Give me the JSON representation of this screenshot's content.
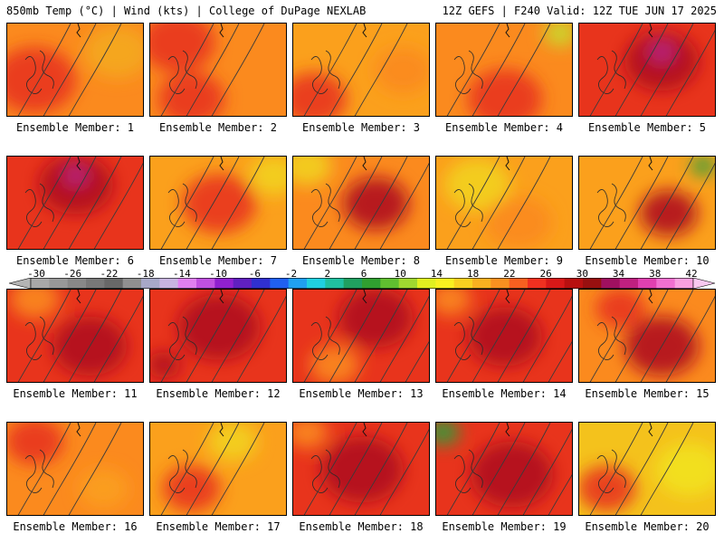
{
  "header": {
    "left": "850mb Temp (°C) | Wind (kts) | College of DuPage NEXLAB",
    "right": "12Z GEFS | F240 Valid: 12Z TUE JUN 17 2025"
  },
  "label_prefix": "Ensemble Member: ",
  "members": [
    {
      "label": "Ensemble Member: 1",
      "base": "#fb8a1e",
      "hot": [
        [
          0.2,
          0.6,
          0.5,
          "#e8341c"
        ],
        [
          0.8,
          0.3,
          0.4,
          "#f4a81c"
        ]
      ],
      "contours": 3
    },
    {
      "label": "Ensemble Member: 2",
      "base": "#fb8a1e",
      "hot": [
        [
          0.2,
          0.2,
          0.45,
          "#e8341c"
        ],
        [
          0.3,
          0.8,
          0.4,
          "#e8341c"
        ]
      ],
      "contours": 3
    },
    {
      "label": "Ensemble Member: 3",
      "base": "#fba01c",
      "hot": [
        [
          0.15,
          0.8,
          0.4,
          "#e8341c"
        ],
        [
          0.8,
          0.5,
          0.35,
          "#fb8a1e"
        ]
      ],
      "contours": 3
    },
    {
      "label": "Ensemble Member: 4",
      "base": "#fb8a1e",
      "hot": [
        [
          0.5,
          0.8,
          0.45,
          "#e8341c"
        ],
        [
          0.9,
          0.1,
          0.2,
          "#c8dc2e"
        ]
      ],
      "contours": 3
    },
    {
      "label": "Ensemble Member: 5",
      "base": "#e8341c",
      "hot": [
        [
          0.6,
          0.4,
          0.45,
          "#b0121c"
        ],
        [
          0.6,
          0.3,
          0.15,
          "#b8288c"
        ]
      ],
      "contours": 4
    },
    {
      "label": "Ensemble Member: 6",
      "base": "#e8341c",
      "hot": [
        [
          0.5,
          0.3,
          0.45,
          "#b0121c"
        ],
        [
          0.5,
          0.2,
          0.14,
          "#b8288c"
        ]
      ],
      "contours": 4
    },
    {
      "label": "Ensemble Member: 7",
      "base": "#fba01c",
      "hot": [
        [
          0.5,
          0.5,
          0.45,
          "#e8341c"
        ],
        [
          0.9,
          0.2,
          0.3,
          "#f2d21c"
        ]
      ],
      "contours": 3
    },
    {
      "label": "Ensemble Member: 8",
      "base": "#fb8a1e",
      "hot": [
        [
          0.6,
          0.5,
          0.4,
          "#b0121c"
        ],
        [
          0.1,
          0.1,
          0.3,
          "#f2d21c"
        ]
      ],
      "contours": 4
    },
    {
      "label": "Ensemble Member: 9",
      "base": "#fba01c",
      "hot": [
        [
          0.3,
          0.3,
          0.4,
          "#f2d21c"
        ],
        [
          0.6,
          0.7,
          0.4,
          "#fb8a1e"
        ]
      ],
      "contours": 3
    },
    {
      "label": "Ensemble Member: 10",
      "base": "#fba01c",
      "hot": [
        [
          0.65,
          0.6,
          0.35,
          "#b0121c"
        ],
        [
          0.9,
          0.1,
          0.15,
          "#2e9e3a"
        ]
      ],
      "contours": 4
    },
    {
      "label": "Ensemble Member: 11",
      "base": "#e8341c",
      "hot": [
        [
          0.6,
          0.6,
          0.45,
          "#b0121c"
        ],
        [
          0.2,
          0.1,
          0.3,
          "#fb8a1e"
        ]
      ],
      "contours": 4
    },
    {
      "label": "Ensemble Member: 12",
      "base": "#e8341c",
      "hot": [
        [
          0.5,
          0.4,
          0.5,
          "#b0121c"
        ],
        [
          0.1,
          0.8,
          0.2,
          "#b0121c"
        ]
      ],
      "contours": 4
    },
    {
      "label": "Ensemble Member: 13",
      "base": "#e8341c",
      "hot": [
        [
          0.6,
          0.3,
          0.45,
          "#b0121c"
        ],
        [
          0.3,
          0.8,
          0.3,
          "#fb8a1e"
        ]
      ],
      "contours": 5
    },
    {
      "label": "Ensemble Member: 14",
      "base": "#e8341c",
      "hot": [
        [
          0.5,
          0.5,
          0.45,
          "#b0121c"
        ],
        [
          0.1,
          0.1,
          0.25,
          "#fb8a1e"
        ]
      ],
      "contours": 5
    },
    {
      "label": "Ensemble Member: 15",
      "base": "#fb8a1e",
      "hot": [
        [
          0.6,
          0.6,
          0.45,
          "#b0121c"
        ],
        [
          0.3,
          0.2,
          0.3,
          "#e8341c"
        ]
      ],
      "contours": 4
    },
    {
      "label": "Ensemble Member: 16",
      "base": "#fb8a1e",
      "hot": [
        [
          0.2,
          0.2,
          0.35,
          "#e8341c"
        ],
        [
          0.7,
          0.7,
          0.3,
          "#fba01c"
        ]
      ],
      "contours": 3
    },
    {
      "label": "Ensemble Member: 17",
      "base": "#fba01c",
      "hot": [
        [
          0.3,
          0.7,
          0.35,
          "#e8341c"
        ],
        [
          0.6,
          0.2,
          0.3,
          "#f2d21c"
        ]
      ],
      "contours": 3
    },
    {
      "label": "Ensemble Member: 18",
      "base": "#e8341c",
      "hot": [
        [
          0.5,
          0.5,
          0.5,
          "#b0121c"
        ],
        [
          0.1,
          0.1,
          0.25,
          "#fb8a1e"
        ]
      ],
      "contours": 4
    },
    {
      "label": "Ensemble Member: 19",
      "base": "#e8341c",
      "hot": [
        [
          0.55,
          0.55,
          0.5,
          "#b0121c"
        ],
        [
          0.05,
          0.1,
          0.2,
          "#2e9e3a"
        ]
      ],
      "contours": 5
    },
    {
      "label": "Ensemble Member: 20",
      "base": "#f4c21c",
      "hot": [
        [
          0.2,
          0.7,
          0.35,
          "#e8341c"
        ],
        [
          0.8,
          0.5,
          0.4,
          "#f2e21c"
        ]
      ],
      "contours": 3
    }
  ],
  "colorbar": {
    "ticks": [
      "-30",
      "-26",
      "-22",
      "-18",
      "-14",
      "-10",
      "-6",
      "-2",
      "2",
      "6",
      "10",
      "14",
      "18",
      "22",
      "26",
      "30",
      "34",
      "38",
      "42"
    ],
    "colors": [
      "#a8a8a8",
      "#989898",
      "#888888",
      "#787878",
      "#686868",
      "#909090",
      "#a8a8c8",
      "#c8b4e0",
      "#e080f0",
      "#c050e0",
      "#9020d0",
      "#6020c0",
      "#3030d0",
      "#2060f0",
      "#20a0f0",
      "#20d0e0",
      "#20c0a0",
      "#20a060",
      "#30a030",
      "#60c030",
      "#a0d830",
      "#e0f020",
      "#f8f020",
      "#f8d020",
      "#f8b020",
      "#f89020",
      "#f86020",
      "#f03020",
      "#d81818",
      "#b81010",
      "#981010",
      "#a01060",
      "#c02080",
      "#e040b0",
      "#f070d0",
      "#f8a0e0"
    ]
  }
}
